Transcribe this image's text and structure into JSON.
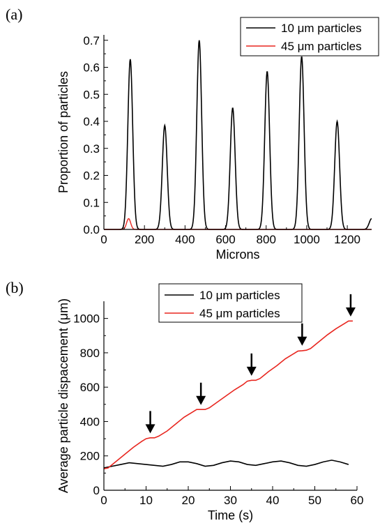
{
  "chart_data": [
    {
      "panel_label": "(a)",
      "type": "line",
      "xlabel": "Microns",
      "ylabel": "Proportion of particles",
      "xlim": [
        0,
        1320
      ],
      "ylim": [
        0,
        0.72
      ],
      "xticks": [
        0,
        200,
        400,
        600,
        800,
        1000,
        1200
      ],
      "xtick_labels": [
        "0",
        "200",
        "400",
        "600",
        "800",
        "1000",
        "1200"
      ],
      "yticks": [
        0.0,
        0.1,
        0.2,
        0.3,
        0.4,
        0.5,
        0.6,
        0.7
      ],
      "ytick_labels": [
        "0.0",
        "0.1",
        "0.2",
        "0.3",
        "0.4",
        "0.5",
        "0.6",
        "0.7"
      ],
      "grid": false,
      "legend_position": "top-right",
      "series": [
        {
          "name": "10 μm particles",
          "color": "#000000",
          "peaks": [
            {
              "center": 130,
              "height": 0.63
            },
            {
              "center": 300,
              "height": 0.385
            },
            {
              "center": 470,
              "height": 0.7
            },
            {
              "center": 635,
              "height": 0.45
            },
            {
              "center": 805,
              "height": 0.585
            },
            {
              "center": 975,
              "height": 0.64
            },
            {
              "center": 1150,
              "height": 0.4
            },
            {
              "center": 1320,
              "height": 0.04
            }
          ],
          "peak_width": 12
        },
        {
          "name": "45 μm particles",
          "color": "#e8261f",
          "peaks": [
            {
              "center": 122,
              "height": 0.04
            }
          ],
          "peak_width": 10
        }
      ]
    },
    {
      "panel_label": "(b)",
      "type": "line",
      "xlabel": "Time (s)",
      "ylabel": "Average particle dispacement (μm)",
      "xlim": [
        0,
        60
      ],
      "ylim": [
        0,
        1100
      ],
      "xticks": [
        0,
        10,
        20,
        30,
        40,
        50,
        60
      ],
      "xtick_labels": [
        "0",
        "10",
        "20",
        "30",
        "40",
        "50",
        "60"
      ],
      "yticks": [
        0,
        200,
        400,
        600,
        800,
        1000
      ],
      "ytick_labels": [
        "0",
        "200",
        "400",
        "600",
        "800",
        "1000"
      ],
      "grid": false,
      "legend_position": "top-center",
      "series": [
        {
          "name": "10 μm particles",
          "color": "#000000",
          "x": [
            0,
            2,
            4,
            6,
            8,
            10,
            12,
            14,
            16,
            18,
            20,
            22,
            24,
            26,
            28,
            30,
            32,
            34,
            36,
            38,
            40,
            42,
            44,
            46,
            48,
            50,
            52,
            54,
            56,
            58
          ],
          "y": [
            130,
            140,
            150,
            160,
            155,
            150,
            145,
            140,
            150,
            165,
            165,
            155,
            140,
            145,
            160,
            170,
            165,
            150,
            145,
            155,
            165,
            170,
            160,
            145,
            140,
            150,
            165,
            175,
            165,
            150
          ]
        },
        {
          "name": "45 μm particles",
          "color": "#e8261f",
          "x": [
            0,
            1,
            3,
            5,
            7,
            9,
            10,
            11,
            12,
            13,
            15,
            17,
            19,
            21,
            22,
            23,
            24,
            25,
            27,
            29,
            31,
            33,
            34,
            35,
            36,
            37,
            39,
            41,
            43,
            45,
            46,
            47,
            48,
            49,
            51,
            53,
            55,
            57,
            58,
            59
          ],
          "y": [
            125,
            130,
            170,
            210,
            250,
            285,
            300,
            305,
            305,
            315,
            345,
            385,
            425,
            455,
            470,
            470,
            470,
            480,
            515,
            550,
            585,
            615,
            635,
            640,
            640,
            650,
            690,
            725,
            765,
            795,
            810,
            812,
            815,
            825,
            865,
            905,
            940,
            970,
            985,
            985
          ]
        }
      ],
      "arrows_at_x": [
        11,
        23,
        35,
        47,
        58.5
      ],
      "arrow_tip_y": [
        315,
        480,
        650,
        825,
        995
      ]
    }
  ]
}
